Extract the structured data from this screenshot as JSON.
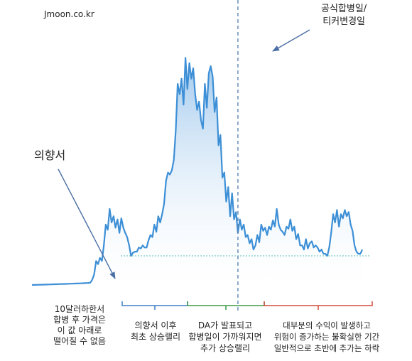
{
  "site": "Jmoon.co.kr",
  "event_merge": [
    "공식합병일/",
    "티커변경일"
  ],
  "event_loi": "의향서",
  "phase_pre": [
    "10달러하한서",
    "합병 후 가격은",
    "이 값 아래로",
    "떨어질 수 없음"
  ],
  "phase_1": [
    "의향서 이후",
    "최초 상승랠리"
  ],
  "phase_2": [
    "DA가 발표되고",
    "합병일이 가까워지면",
    "추가 상승랠리"
  ],
  "phase_3": [
    "대부분의 수익이 발생하고",
    "위험이 증가하는 불확실한 기간",
    "일반적으로 초반에 추가는 하락"
  ],
  "colors": {
    "line": "#3d8fd6",
    "fill_top": "#9cc6ec",
    "fill_bottom": "#ffffff",
    "baseline": "#5bbfb5",
    "event_line": "#5b86b5",
    "arrow": "#4a6fa5",
    "bracket_1": "#3d7fc9",
    "bracket_2": "#3f9a4a",
    "bracket_3": "#d14b3c"
  },
  "chart_data": {
    "type": "area",
    "title": "",
    "xlabel": "",
    "ylabel": "",
    "x": [
      0,
      1,
      2,
      3,
      4,
      5,
      6,
      7,
      8,
      9,
      10,
      11,
      12,
      13,
      14,
      15,
      16,
      17,
      18,
      19,
      20,
      21,
      22,
      23,
      24,
      25,
      26,
      27,
      28,
      29,
      30,
      31,
      32,
      33,
      34,
      35,
      36,
      37,
      38,
      39,
      40,
      41,
      42,
      43,
      44,
      45,
      46,
      47,
      48,
      49,
      50,
      51,
      52,
      53,
      54,
      55,
      56,
      57,
      58,
      59,
      60,
      61,
      62,
      63,
      64,
      65,
      66,
      67,
      68,
      69,
      70,
      71,
      72,
      73,
      74,
      75,
      76,
      77,
      78,
      79,
      80,
      81,
      82,
      83,
      84,
      85,
      86,
      87,
      88,
      89,
      90,
      91,
      92,
      93,
      94,
      95,
      96,
      97,
      98,
      99,
      100,
      101,
      102,
      103,
      104,
      105,
      106,
      107,
      108,
      109,
      110,
      111,
      112,
      113,
      114,
      115,
      116,
      117,
      118,
      119,
      120,
      121,
      122,
      123,
      124,
      125,
      126,
      127,
      128,
      129,
      130,
      131,
      132,
      133,
      134,
      135,
      136,
      137,
      138,
      139,
      140,
      141,
      142,
      143,
      144,
      145,
      146,
      147,
      148,
      149,
      150,
      151,
      152,
      153,
      154,
      155,
      156,
      157,
      158,
      159,
      160,
      161,
      162,
      163,
      164,
      165,
      166,
      167,
      168,
      169,
      170
    ],
    "values": [
      2,
      2.1,
      2.1,
      2.2,
      2.3,
      2.3,
      2.4,
      2.4,
      2.5,
      2.5,
      2.6,
      2.7,
      2.7,
      2.8,
      2.9,
      2.9,
      3,
      3.1,
      3.1,
      3.2,
      3.3,
      3.3,
      3.4,
      3.5,
      3.5,
      3.6,
      3.7,
      3.8,
      3.9,
      4,
      4.2,
      7,
      12,
      25,
      22,
      28,
      25,
      40,
      60,
      55,
      75,
      62,
      68,
      57,
      65,
      52,
      66,
      57,
      52,
      48,
      40,
      30,
      33,
      34,
      34,
      38,
      37,
      40,
      38,
      38,
      45,
      50,
      48,
      60,
      53,
      68,
      62,
      70,
      80,
      102,
      110,
      108,
      112,
      122,
      150,
      195,
      185,
      200,
      175,
      220,
      190,
      215,
      200,
      210,
      185,
      170,
      178,
      160,
      152,
      195,
      172,
      205,
      212,
      202,
      168,
      182,
      136,
      146,
      105,
      110,
      82,
      96,
      68,
      90,
      65,
      72,
      52,
      65,
      55,
      60,
      48,
      50,
      42,
      46,
      36,
      40,
      50,
      43,
      60,
      54,
      57,
      50,
      58,
      55,
      64,
      58,
      75,
      60,
      55,
      53,
      50,
      58,
      56,
      65,
      54,
      58,
      46,
      51,
      40,
      40,
      36,
      46,
      37,
      42,
      44,
      38,
      40,
      38,
      34,
      36,
      32,
      32,
      30,
      38,
      52,
      70,
      62,
      74,
      58,
      70,
      66,
      74,
      68,
      72,
      60,
      54,
      40,
      34,
      32,
      32,
      36
    ],
    "baseline_value": 30,
    "ylim": [
      0,
      240
    ],
    "events": [
      {
        "label_key": "event_loi",
        "x": 31
      },
      {
        "label_key": "event_merge",
        "x": 106
      }
    ]
  }
}
